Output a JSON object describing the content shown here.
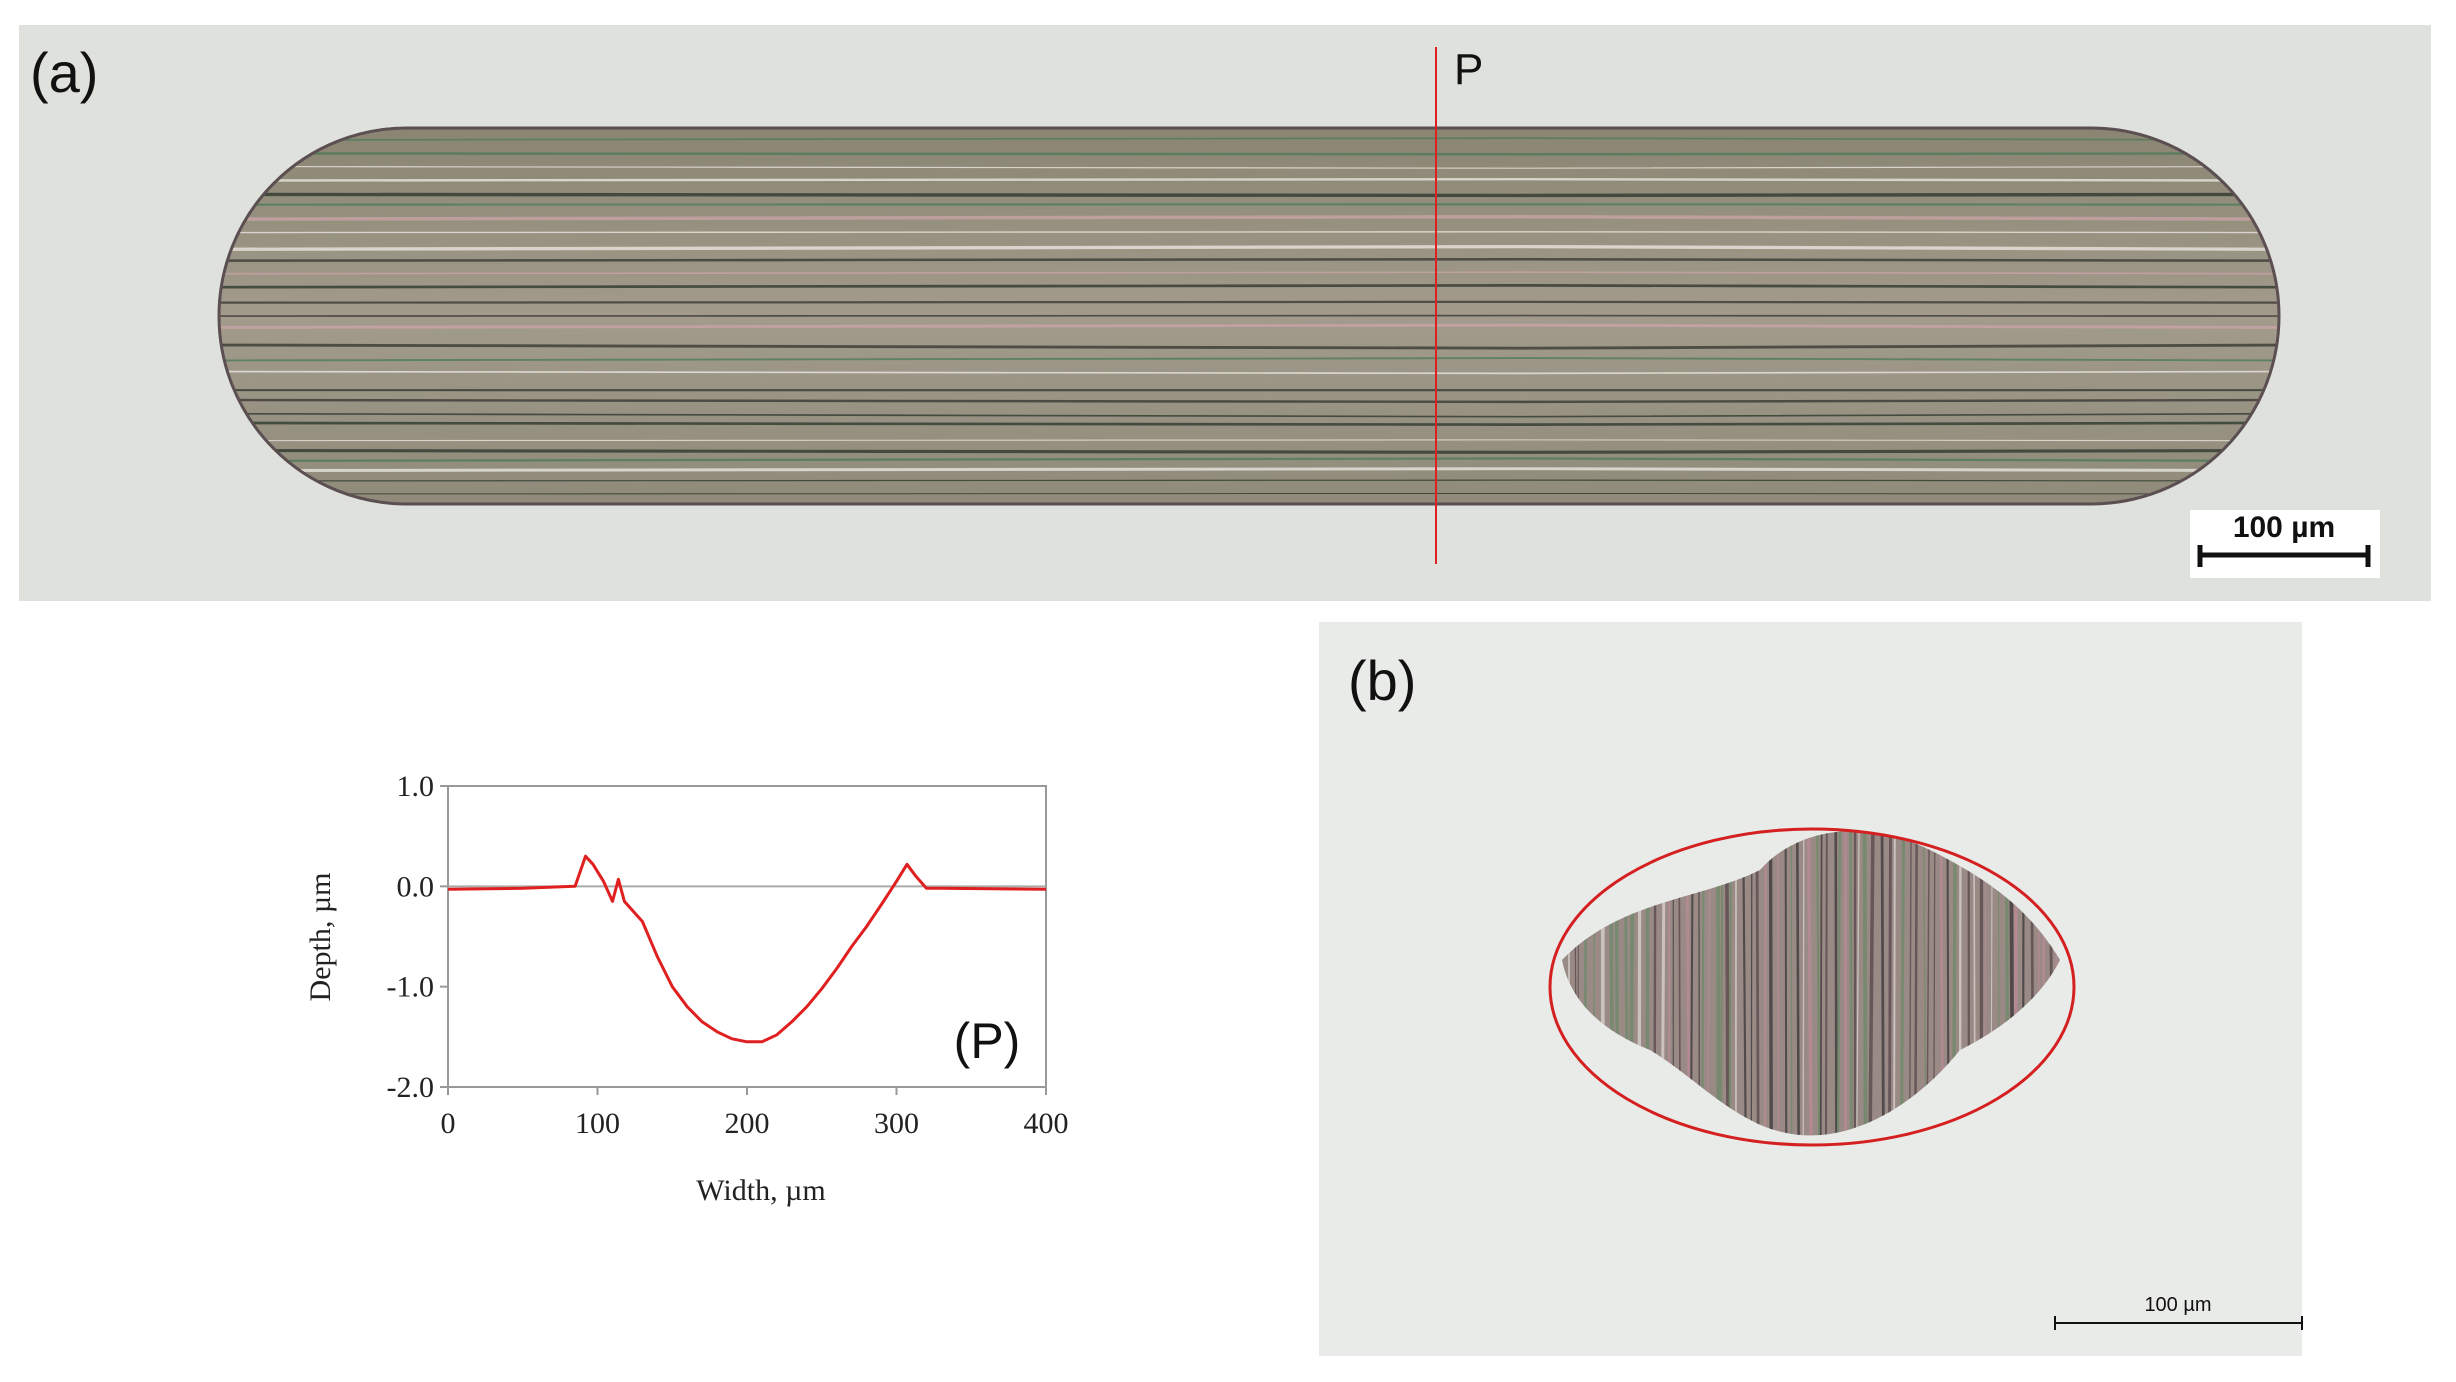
{
  "panels": {
    "a": {
      "label": "(a)",
      "line_label": "P",
      "scale_bar": "100 µm"
    },
    "b": {
      "label": "(b)",
      "scale_bar": "100 µm"
    }
  },
  "chart_data": {
    "type": "line",
    "annotation": "(P)",
    "xlabel": "Width, µm",
    "ylabel": "Depth, µm",
    "x": [
      0,
      50,
      85,
      92,
      97,
      104,
      110,
      114,
      118,
      130,
      140,
      150,
      160,
      170,
      180,
      190,
      200,
      210,
      220,
      230,
      240,
      250,
      260,
      270,
      280,
      290,
      300,
      307,
      313,
      320,
      330,
      400
    ],
    "values": [
      -0.03,
      -0.02,
      0.0,
      0.3,
      0.22,
      0.05,
      -0.15,
      0.07,
      -0.15,
      -0.35,
      -0.7,
      -1.0,
      -1.2,
      -1.35,
      -1.45,
      -1.52,
      -1.55,
      -1.55,
      -1.48,
      -1.35,
      -1.2,
      -1.02,
      -0.82,
      -0.6,
      -0.4,
      -0.18,
      0.05,
      0.22,
      0.1,
      -0.02,
      -0.02,
      -0.03
    ],
    "color": "#e02020",
    "xlim": [
      0,
      400
    ],
    "ylim": [
      -2,
      1
    ],
    "xticks": [
      0,
      100,
      200,
      300,
      400
    ],
    "yticks": [
      {
        "value": 1,
        "label": "1.0"
      },
      {
        "value": 0,
        "label": "0.0"
      },
      {
        "value": -1,
        "label": "-1.0"
      },
      {
        "value": -2,
        "label": "-2.0"
      }
    ]
  }
}
